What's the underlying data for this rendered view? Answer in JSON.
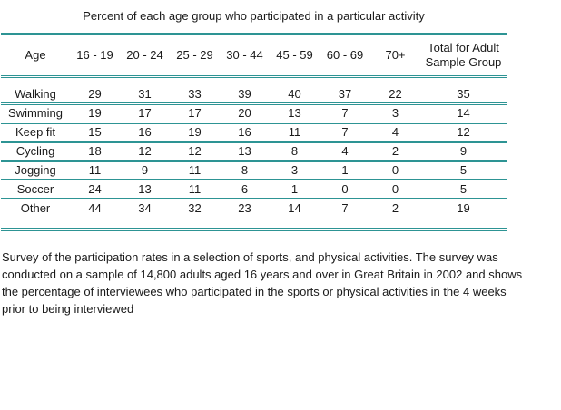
{
  "chart_data": {
    "type": "table",
    "title": "Percent of each age group who participated in a particular activity",
    "columns": [
      "Age",
      "16 - 19",
      "20 - 24",
      "25 - 29",
      "30 - 44",
      "45 - 59",
      "60 - 69",
      "70+",
      "Total for Adult Sample Group"
    ],
    "rows": [
      [
        "Walking",
        29,
        31,
        33,
        39,
        40,
        37,
        22,
        35
      ],
      [
        "Swimming",
        19,
        17,
        17,
        20,
        13,
        7,
        3,
        14
      ],
      [
        "Keep fit",
        15,
        16,
        19,
        16,
        11,
        7,
        4,
        12
      ],
      [
        "Cycling",
        18,
        12,
        12,
        13,
        8,
        4,
        2,
        9
      ],
      [
        "Jogging",
        11,
        9,
        11,
        8,
        3,
        1,
        0,
        5
      ],
      [
        "Soccer",
        24,
        13,
        11,
        6,
        1,
        0,
        0,
        5
      ],
      [
        "Other",
        44,
        34,
        32,
        23,
        14,
        7,
        2,
        19
      ]
    ],
    "row_label_column": "Age",
    "legend_position": "none",
    "grid": "horizontal-rules-only"
  },
  "caption": "Survey of the participation rates in a selection of sports, and physical activities. The survey was\nconducted on a sample of 14,800 adults aged 16 years and over in Great Britain in 2002 and shows\nthe percentage of interviewees who participated in the sports or physical activities in the 4 weeks\nprior to being interviewed",
  "colors": {
    "rule": "#2d9494",
    "text": "#1a1a1a",
    "background": "#ffffff"
  }
}
